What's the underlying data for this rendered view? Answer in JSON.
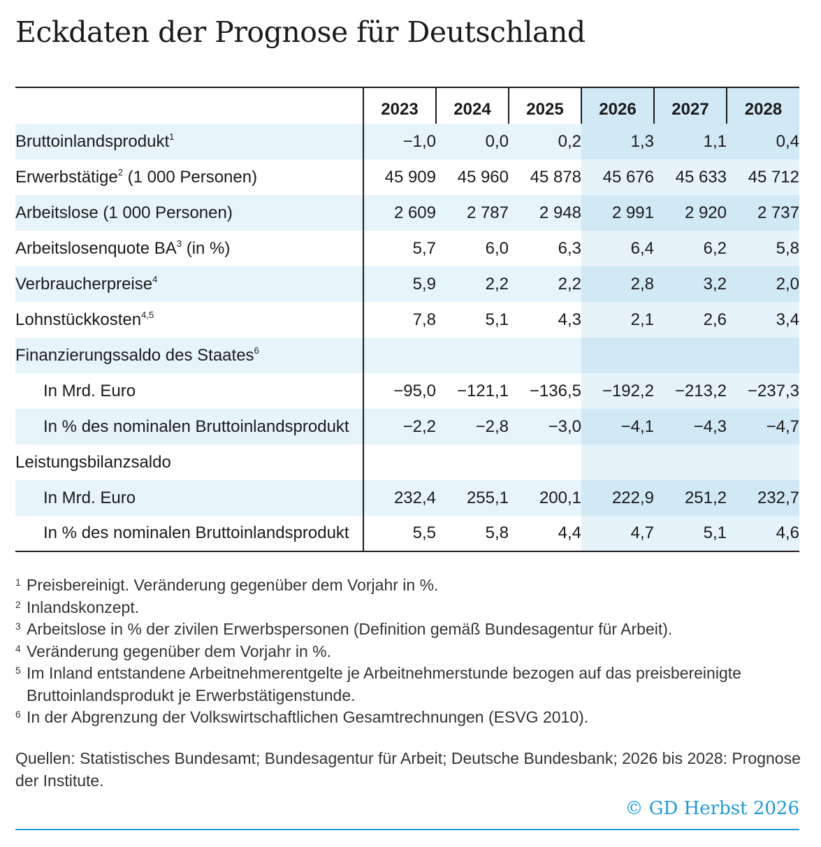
{
  "title": "Eckdaten der Prognose für Deutschland",
  "table": {
    "years": [
      "2023",
      "2024",
      "2025",
      "2026",
      "2027",
      "2028"
    ],
    "rows": [
      {
        "label": "Bruttoinlandsprodukt",
        "sup": "1",
        "values": [
          "−1,0",
          "0,0",
          "0,2",
          "1,3",
          "1,1",
          "0,4"
        ]
      },
      {
        "label": "Erwerbstätige",
        "sup": "2",
        "suffix": " (1 000 Personen)",
        "values": [
          "45 909",
          "45 960",
          "45 878",
          "45 676",
          "45 633",
          "45 712"
        ]
      },
      {
        "label": "Arbeitslose (1 000 Personen)",
        "values": [
          "2 609",
          "2 787",
          "2 948",
          "2 991",
          "2 920",
          "2 737"
        ]
      },
      {
        "label": "Arbeitslosenquote BA",
        "sup": "3",
        "suffix": " (in %)",
        "values": [
          "5,7",
          "6,0",
          "6,3",
          "6,4",
          "6,2",
          "5,8"
        ]
      },
      {
        "label": "Verbraucherpreise",
        "sup": "4",
        "values": [
          "5,9",
          "2,2",
          "2,2",
          "2,8",
          "3,2",
          "2,0"
        ]
      },
      {
        "label": "Lohnstückkosten",
        "sup": "4,5",
        "values": [
          "7,8",
          "5,1",
          "4,3",
          "2,1",
          "2,6",
          "3,4"
        ]
      },
      {
        "label": "Finanzierungssaldo des Staates",
        "sup": "6",
        "values": [
          "",
          "",
          "",
          "",
          "",
          ""
        ]
      },
      {
        "label": "In Mrd. Euro",
        "sub": true,
        "values": [
          "−95,0",
          "−121,1",
          "−136,5",
          "−192,2",
          "−213,2",
          "−237,3"
        ]
      },
      {
        "label": "In % des nominalen Bruttoinlandsprodukt",
        "sub": true,
        "values": [
          "−2,2",
          "−2,8",
          "−3,0",
          "−4,1",
          "−4,3",
          "−4,7"
        ]
      },
      {
        "label": "Leistungsbilanzsaldo",
        "values": [
          "",
          "",
          "",
          "",
          "",
          ""
        ]
      },
      {
        "label": "In Mrd. Euro",
        "sub": true,
        "values": [
          "232,4",
          "255,1",
          "200,1",
          "222,9",
          "251,2",
          "232,7"
        ]
      },
      {
        "label": "In % des nominalen Bruttoinlandsprodukt",
        "sub": true,
        "values": [
          "5,5",
          "5,8",
          "4,4",
          "4,7",
          "5,1",
          "4,6"
        ]
      }
    ]
  },
  "footnotes": [
    {
      "mark": "1",
      "text": "Preisbereinigt. Veränderung gegenüber dem Vorjahr in %."
    },
    {
      "mark": "2",
      "text": "Inlandskonzept."
    },
    {
      "mark": "3",
      "text": "Arbeitslose in % der zivilen Erwerbspersonen (Definition gemäß Bundesagentur für Arbeit)."
    },
    {
      "mark": "4",
      "text": "Veränderung gegenüber dem Vorjahr in %."
    },
    {
      "mark": "5",
      "text": "Im Inland entstandene Arbeitnehmerentgelte je Arbeitnehmerstunde bezogen auf das preisbereinigte Bruttoinlandsprodukt je Erwerbstätigenstunde."
    },
    {
      "mark": "6",
      "text": "In der Abgrenzung der Volkswirtschaftlichen Gesamtrechnungen (ESVG 2010)."
    }
  ],
  "sources": "Quellen: Statistisches Bundesamt; Bundesagentur für Arbeit; Deutsche Bundesbank; 2026 bis 2028: Prognose der Institute.",
  "copyright": "© GD Herbst 2026",
  "colors": {
    "accent": "#1c9bd6",
    "row_light": "#e7f4fc",
    "forecast_light": "#e6f3fb",
    "forecast_dark": "#d1e8f5"
  }
}
